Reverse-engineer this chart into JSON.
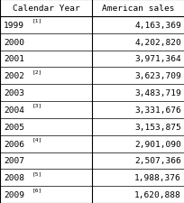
{
  "col1_header": "Calendar Year",
  "col2_header": "American sales",
  "rows": [
    {
      "year": "1999",
      "superscript": "[1]",
      "sales": "4,163,369"
    },
    {
      "year": "2000",
      "superscript": "",
      "sales": "4,202,820"
    },
    {
      "year": "2001",
      "superscript": "",
      "sales": "3,971,364"
    },
    {
      "year": "2002",
      "superscript": "[2]",
      "sales": "3,623,709"
    },
    {
      "year": "2003",
      "superscript": "",
      "sales": "3,483,719"
    },
    {
      "year": "2004",
      "superscript": "[3]",
      "sales": "3,331,676"
    },
    {
      "year": "2005",
      "superscript": "",
      "sales": "3,153,875"
    },
    {
      "year": "2006",
      "superscript": "[4]",
      "sales": "2,901,090"
    },
    {
      "year": "2007",
      "superscript": "",
      "sales": "2,507,366"
    },
    {
      "year": "2008",
      "superscript": "[5]",
      "sales": "1,988,376"
    },
    {
      "year": "2009",
      "superscript": "[6]",
      "sales": "1,620,888"
    }
  ],
  "bg_color": "#ffffff",
  "border_color": "#000000",
  "text_color": "#000000",
  "header_fontsize": 6.8,
  "cell_fontsize": 6.8,
  "sup_fontsize": 4.5,
  "col_split": 0.5,
  "fig_width": 2.05,
  "fig_height": 2.26,
  "dpi": 100
}
